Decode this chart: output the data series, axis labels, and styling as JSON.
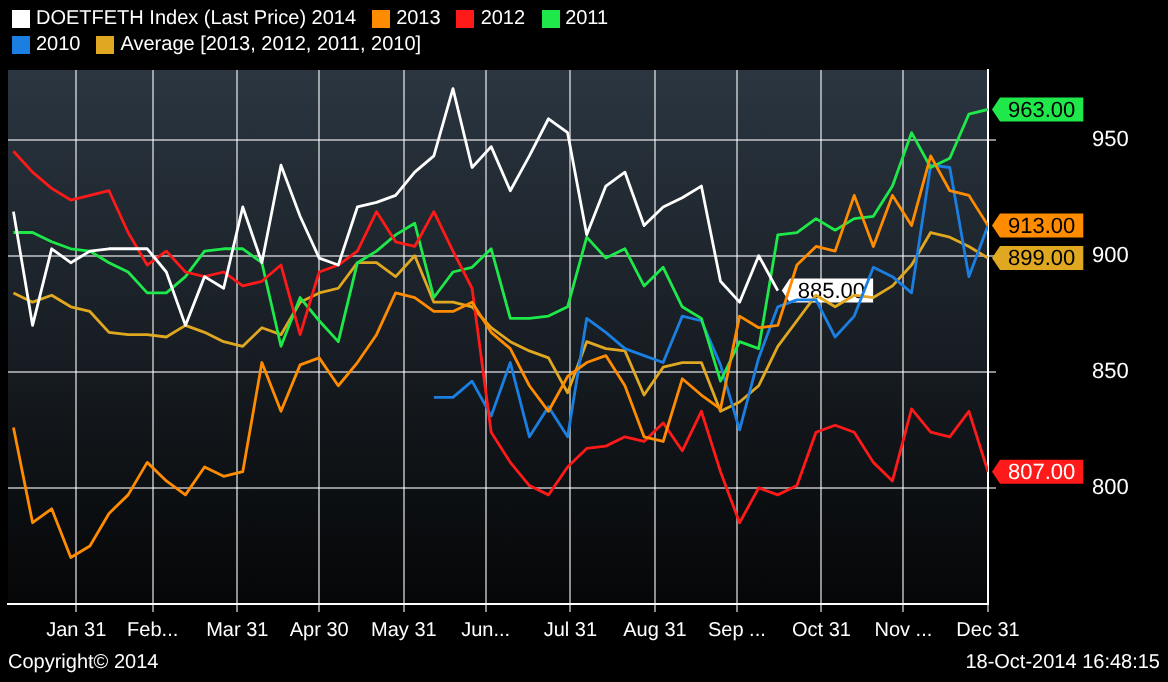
{
  "chart_data": {
    "type": "line",
    "x": [
      "--01-08",
      "--01-15",
      "--01-22",
      "--01-29",
      "--02-05",
      "--02-12",
      "--02-19",
      "--02-26",
      "--03-05",
      "--03-12",
      "--03-19",
      "--03-26",
      "--04-02",
      "--04-09",
      "--04-16",
      "--04-23",
      "--04-30",
      "--05-07",
      "--05-14",
      "--05-21",
      "--05-28",
      "--06-04",
      "--06-11",
      "--06-18",
      "--06-25",
      "--07-02",
      "--07-09",
      "--07-16",
      "--07-23",
      "--07-30",
      "--08-06",
      "--08-13",
      "--08-20",
      "--08-27",
      "--09-03",
      "--09-10",
      "--09-17",
      "--09-24",
      "--10-01",
      "--10-08",
      "--10-15",
      "--10-22",
      "--10-29",
      "--11-05",
      "--11-12",
      "--11-19",
      "--11-26",
      "--12-03",
      "--12-10",
      "--12-17",
      "--12-24",
      "--12-31"
    ],
    "xlim": [
      "--01-06",
      "--12-31"
    ],
    "xticks": [
      {
        "value": "--01-31",
        "label": "Jan 31"
      },
      {
        "value": "--02-28",
        "label": "Feb..."
      },
      {
        "value": "--03-31",
        "label": "Mar 31"
      },
      {
        "value": "--04-30",
        "label": "Apr 30"
      },
      {
        "value": "--05-31",
        "label": "May 31"
      },
      {
        "value": "--06-30",
        "label": "Jun..."
      },
      {
        "value": "--07-31",
        "label": "Jul 31"
      },
      {
        "value": "--08-31",
        "label": "Aug 31"
      },
      {
        "value": "--09-30",
        "label": "Sep ..."
      },
      {
        "value": "--10-31",
        "label": "Oct 31"
      },
      {
        "value": "--11-30",
        "label": "Nov ..."
      },
      {
        "value": "--12-31",
        "label": "Dec 31"
      }
    ],
    "ylim": [
      750,
      980
    ],
    "yticks": [
      800,
      850,
      900,
      950
    ],
    "grid": true,
    "legend": "top left",
    "marker": "none",
    "annotations": [
      "Copyright© 2014",
      "18-Oct-2014 16:48:15"
    ],
    "series": [
      {
        "name": "DOETFETH Index (Last Price) 2014",
        "color": "#ffffff",
        "values": [
          919,
          870,
          903,
          897,
          902,
          903,
          903,
          903,
          893,
          870,
          891,
          886,
          921,
          897,
          939,
          917,
          899,
          896,
          921,
          923,
          926,
          936,
          943,
          972,
          938,
          947,
          928,
          943,
          959,
          953,
          909,
          930,
          936,
          913,
          921,
          925,
          930,
          889,
          880,
          900,
          885,
          null,
          null,
          null,
          null,
          null,
          null,
          null,
          null,
          null,
          null,
          null
        ],
        "value_labels": [
          null,
          null,
          null,
          null,
          null,
          null,
          null,
          null,
          null,
          null,
          null,
          null,
          null,
          null,
          null,
          null,
          null,
          null,
          null,
          null,
          null,
          null,
          null,
          null,
          null,
          null,
          null,
          null,
          null,
          null,
          null,
          null,
          null,
          null,
          null,
          null,
          null,
          null,
          null,
          null,
          "885.00",
          null,
          null,
          null,
          null,
          null,
          null,
          null,
          null,
          null,
          null,
          null
        ]
      },
      {
        "name": "2013",
        "color": "#ff8c00",
        "values": [
          826,
          785,
          791,
          770,
          775,
          789,
          797,
          811,
          803,
          797,
          809,
          805,
          807,
          854,
          833,
          853,
          856,
          844,
          854,
          866,
          884,
          882,
          876,
          876,
          880,
          867,
          860,
          844,
          833,
          848,
          854,
          857,
          844,
          822,
          820,
          847,
          840,
          834,
          874,
          869,
          870,
          896,
          904,
          902,
          926,
          904,
          926,
          913,
          943,
          928,
          926,
          913
        ],
        "value_labels": [
          null,
          null,
          null,
          null,
          null,
          null,
          null,
          null,
          null,
          null,
          null,
          null,
          null,
          null,
          null,
          null,
          null,
          null,
          null,
          null,
          null,
          null,
          null,
          null,
          null,
          null,
          null,
          null,
          null,
          null,
          null,
          null,
          null,
          null,
          null,
          null,
          null,
          null,
          null,
          null,
          null,
          null,
          null,
          null,
          null,
          null,
          null,
          null,
          null,
          null,
          null,
          "913.00"
        ]
      },
      {
        "name": "2012",
        "color": "#ff1a1a",
        "values": [
          945,
          936,
          929,
          924,
          926,
          928,
          910,
          896,
          902,
          893,
          891,
          893,
          887,
          889,
          896,
          866,
          893,
          896,
          902,
          919,
          906,
          904,
          919,
          902,
          886,
          824,
          811,
          801,
          797,
          809,
          817,
          818,
          822,
          820,
          828,
          816,
          833,
          807,
          785,
          800,
          797,
          801,
          824,
          827,
          824,
          811,
          803,
          834,
          824,
          822,
          833,
          807
        ],
        "value_labels": [
          null,
          null,
          null,
          null,
          null,
          null,
          null,
          null,
          null,
          null,
          null,
          null,
          null,
          null,
          null,
          null,
          null,
          null,
          null,
          null,
          null,
          null,
          null,
          null,
          null,
          null,
          null,
          null,
          null,
          null,
          null,
          null,
          null,
          null,
          null,
          null,
          null,
          null,
          null,
          null,
          null,
          null,
          null,
          null,
          null,
          null,
          null,
          null,
          null,
          null,
          null,
          "807.00"
        ]
      },
      {
        "name": "2011",
        "color": "#1ee84a",
        "values": [
          910,
          910,
          906,
          903,
          902,
          897,
          893,
          884,
          884,
          891,
          902,
          903,
          903,
          897,
          861,
          882,
          872,
          863,
          897,
          902,
          909,
          914,
          882,
          893,
          895,
          903,
          873,
          873,
          874,
          878,
          908,
          899,
          903,
          887,
          895,
          878,
          873,
          846,
          863,
          860,
          909,
          910,
          916,
          911,
          916,
          917,
          930,
          953,
          938,
          942,
          961,
          963
        ],
        "value_labels": [
          null,
          null,
          null,
          null,
          null,
          null,
          null,
          null,
          null,
          null,
          null,
          null,
          null,
          null,
          null,
          null,
          null,
          null,
          null,
          null,
          null,
          null,
          null,
          null,
          null,
          null,
          null,
          null,
          null,
          null,
          null,
          null,
          null,
          null,
          null,
          null,
          null,
          null,
          null,
          null,
          null,
          null,
          null,
          null,
          null,
          null,
          null,
          null,
          null,
          null,
          null,
          "963.00"
        ]
      },
      {
        "name": "2010",
        "color": "#1a7fe0",
        "values": [
          null,
          null,
          null,
          null,
          null,
          null,
          null,
          null,
          null,
          null,
          null,
          null,
          null,
          null,
          null,
          null,
          null,
          null,
          null,
          null,
          null,
          null,
          839,
          839,
          846,
          831,
          854,
          822,
          835,
          822,
          873,
          867,
          860,
          857,
          854,
          874,
          872,
          853,
          825,
          856,
          878,
          881,
          881,
          865,
          874,
          895,
          891,
          884,
          939,
          938,
          891,
          913
        ]
      },
      {
        "name": "Average [2013, 2012, 2011, 2010]",
        "color": "#e0a820",
        "values": [
          884,
          880,
          883,
          878,
          876,
          867,
          866,
          866,
          865,
          870,
          867,
          863,
          861,
          869,
          866,
          880,
          884,
          886,
          897,
          897,
          891,
          900,
          880,
          880,
          878,
          869,
          863,
          859,
          856,
          841,
          863,
          860,
          859,
          840,
          852,
          854,
          854,
          833,
          837,
          844,
          861,
          872,
          883,
          878,
          883,
          882,
          887,
          896,
          910,
          908,
          904,
          899
        ],
        "value_labels": [
          null,
          null,
          null,
          null,
          null,
          null,
          null,
          null,
          null,
          null,
          null,
          null,
          null,
          null,
          null,
          null,
          null,
          null,
          null,
          null,
          null,
          null,
          null,
          null,
          null,
          null,
          null,
          null,
          null,
          null,
          null,
          null,
          null,
          null,
          null,
          null,
          null,
          null,
          null,
          null,
          null,
          null,
          null,
          null,
          null,
          null,
          null,
          null,
          null,
          null,
          null,
          "899.00"
        ]
      }
    ]
  }
}
